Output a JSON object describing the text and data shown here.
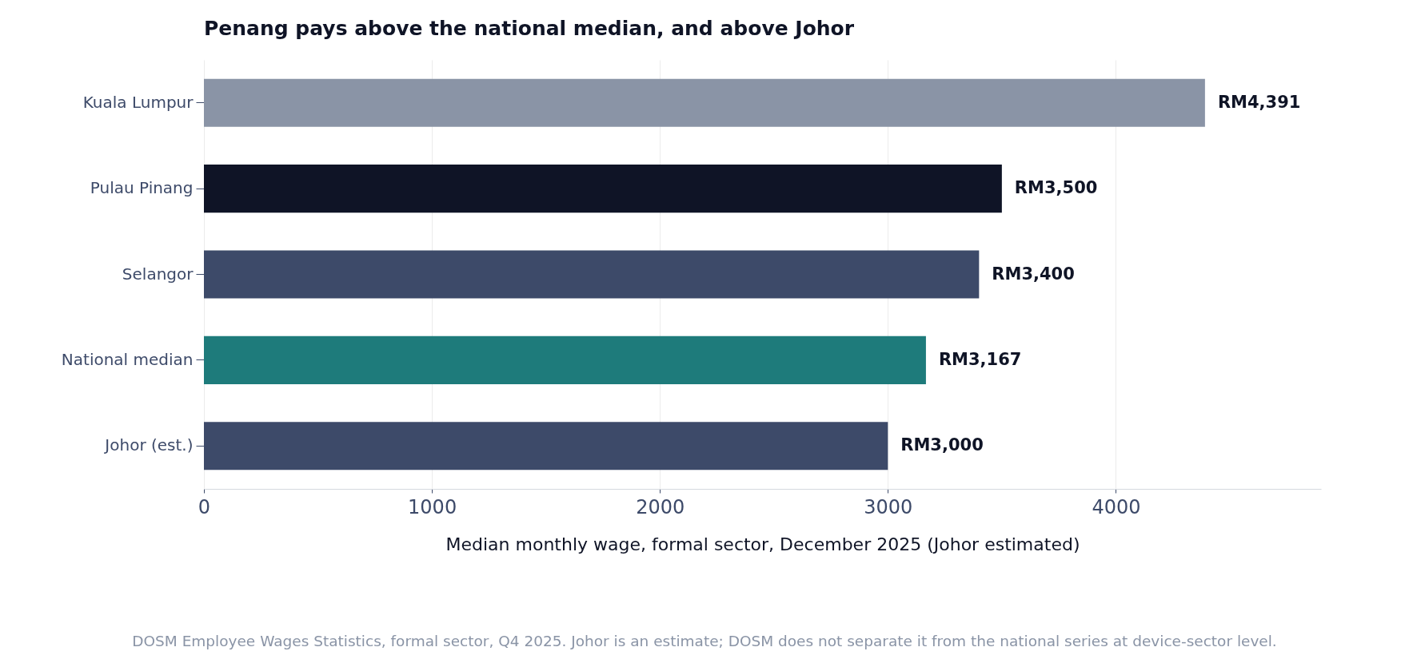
{
  "chart_data": {
    "type": "bar",
    "orientation": "horizontal",
    "title": "Penang pays above the national median, and above Johor",
    "xlabel": "Median monthly wage, formal sector, December 2025 (Johor estimated)",
    "categories": [
      "Kuala Lumpur",
      "Pulau Pinang",
      "Selangor",
      "National median",
      "Johor (est.)"
    ],
    "values": [
      4391,
      3500,
      3400,
      3167,
      3000
    ],
    "colors": [
      "#8a94a6",
      "#0f1426",
      "#3d4a69",
      "#1e7b7b",
      "#3d4a69"
    ],
    "value_labels": [
      "RM4,391",
      "RM3,500",
      "RM3,400",
      "RM3,167",
      "RM3,000"
    ],
    "xlim": [
      0,
      4900
    ],
    "xticks": [
      0,
      1000,
      2000,
      3000,
      4000
    ],
    "grid": "x",
    "annotations": [
      "DOSM Employee Wages Statistics, formal sector, Q4 2025. Johor is an estimate; DOSM does not separate it from the national series at device-sector level."
    ]
  }
}
